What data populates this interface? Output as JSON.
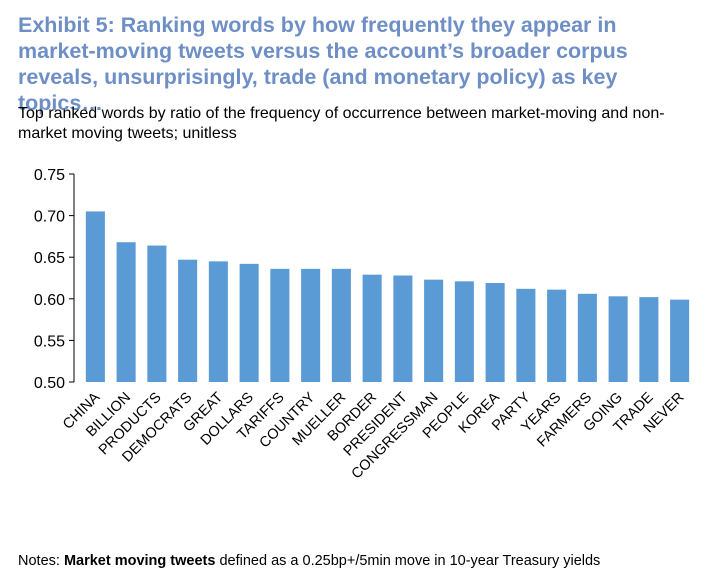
{
  "title": "Exhibit 5: Ranking words by how frequently they appear in market-moving tweets versus the account’s broader corpus reveals, unsurprisingly, trade (and monetary policy) as key topics…",
  "subtitle": "Top ranked words by ratio of the frequency of occurrence between market-moving and non-market moving tweets; unitless",
  "notes": {
    "prefix": "Notes: ",
    "bold": "Market moving tweets",
    "rest": " defined as a 0.25bp+/5min move in 10-year Treasury yields"
  },
  "colors": {
    "bar": "#5b9bd5",
    "title": "#6e8fc6",
    "axis": "#000000"
  },
  "chart_data": {
    "type": "bar",
    "categories": [
      "CHINA",
      "BILLION",
      "PRODUCTS",
      "DEMOCRATS",
      "GREAT",
      "DOLLARS",
      "TARIFFS",
      "COUNTRY",
      "MUELLER",
      "BORDER",
      "PRESIDENT",
      "CONGRESSMAN",
      "PEOPLE",
      "KOREA",
      "PARTY",
      "YEARS",
      "FARMERS",
      "GOING",
      "TRADE",
      "NEVER"
    ],
    "values": [
      0.705,
      0.668,
      0.664,
      0.647,
      0.645,
      0.642,
      0.636,
      0.636,
      0.636,
      0.629,
      0.628,
      0.623,
      0.621,
      0.619,
      0.612,
      0.611,
      0.606,
      0.603,
      0.602,
      0.599
    ],
    "ylim": [
      0.5,
      0.75
    ],
    "yticks": [
      "0.75",
      "0.70",
      "0.65",
      "0.60",
      "0.55",
      "0.50"
    ],
    "xlabel": "",
    "ylabel": "",
    "grid": false,
    "legend": "none"
  }
}
